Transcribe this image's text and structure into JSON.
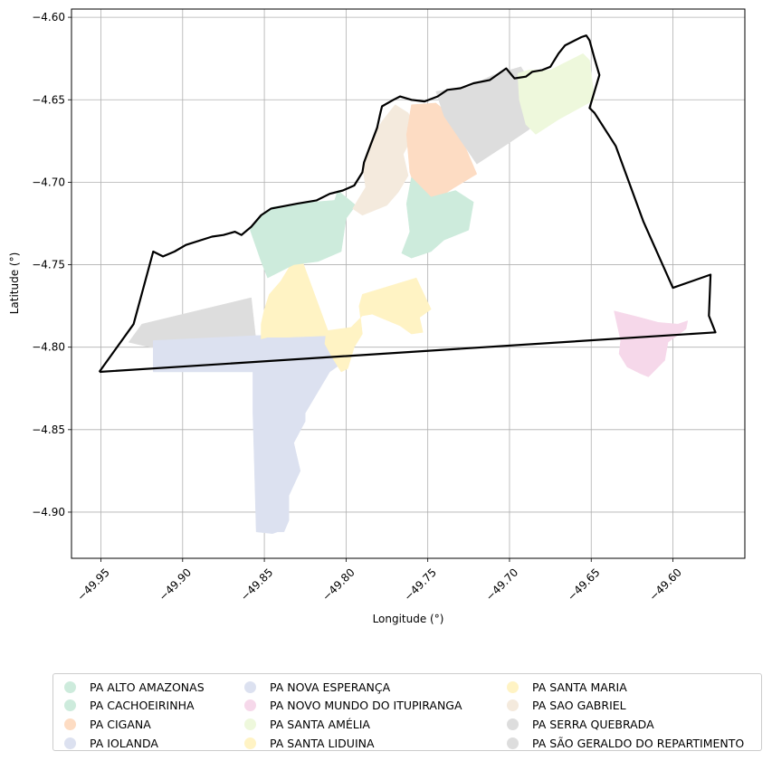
{
  "chart_data": {
    "type": "map",
    "xlabel": "Longitude (°)",
    "ylabel": "Latitude (°)",
    "xlim": [
      -49.968,
      -49.556
    ],
    "ylim": [
      -4.928,
      -4.595
    ],
    "xticks": [
      -49.95,
      -49.9,
      -49.85,
      -49.8,
      -49.75,
      -49.7,
      -49.65,
      -49.6
    ],
    "xtick_labels": [
      "−49.95",
      "−49.90",
      "−49.85",
      "−49.80",
      "−49.75",
      "−49.70",
      "−49.65",
      "−49.60"
    ],
    "yticks": [
      -4.6,
      -4.65,
      -4.7,
      -4.75,
      -4.8,
      -4.85,
      -4.9
    ],
    "ytick_labels": [
      "−4.60",
      "−4.65",
      "−4.70",
      "−4.75",
      "−4.80",
      "−4.85",
      "−4.90"
    ],
    "grid": true,
    "legend_position": "bottom",
    "boundary_color": "#000000",
    "legend": [
      {
        "label": "PA ALTO AMAZONAS",
        "color": "#cdebdc"
      },
      {
        "label": "PA CACHOEIRINHA",
        "color": "#cdebdc"
      },
      {
        "label": "PA CIGANA",
        "color": "#fddcc3"
      },
      {
        "label": "PA IOLANDA",
        "color": "#dce1f0"
      },
      {
        "label": "PA NOVA ESPERANÇA",
        "color": "#dce1f0"
      },
      {
        "label": "PA NOVO MUNDO DO ITUPIRANGA",
        "color": "#f6d8ea"
      },
      {
        "label": "PA SANTA AMÉLIA",
        "color": "#eef8dc"
      },
      {
        "label": "PA SANTA LIDUINA",
        "color": "#fff3c4"
      },
      {
        "label": "PA SANTA MARIA",
        "color": "#fff3c4"
      },
      {
        "label": "PA SAO GABRIEL",
        "color": "#f4eadd"
      },
      {
        "label": "PA SERRA QUEBRADA",
        "color": "#dddddd"
      },
      {
        "label": "PA SÃO GERALDO DO REPARTIMENTO",
        "color": "#dddddd"
      }
    ],
    "regions": [
      {
        "name": "PA SERRA QUEBRADA",
        "color": "#dddddd",
        "coords": [
          [
            -49.933,
            -4.797
          ],
          [
            -49.925,
            -4.786
          ],
          [
            -49.858,
            -4.77
          ],
          [
            -49.855,
            -4.797
          ],
          [
            -49.86,
            -4.8
          ],
          [
            -49.92,
            -4.8
          ]
        ]
      },
      {
        "name": "PA NOVA ESPERANÇA",
        "color": "#dce1f0",
        "coords": [
          [
            -49.918,
            -4.796
          ],
          [
            -49.855,
            -4.793
          ],
          [
            -49.81,
            -4.792
          ],
          [
            -49.804,
            -4.8
          ],
          [
            -49.8,
            -4.808
          ],
          [
            -49.81,
            -4.815
          ],
          [
            -49.825,
            -4.84
          ],
          [
            -49.825,
            -4.845
          ],
          [
            -49.832,
            -4.858
          ],
          [
            -49.828,
            -4.875
          ],
          [
            -49.835,
            -4.89
          ],
          [
            -49.835,
            -4.905
          ],
          [
            -49.838,
            -4.912
          ],
          [
            -49.842,
            -4.912
          ],
          [
            -49.845,
            -4.913
          ],
          [
            -49.855,
            -4.912
          ],
          [
            -49.856,
            -4.876
          ],
          [
            -49.857,
            -4.84
          ],
          [
            -49.857,
            -4.815
          ],
          [
            -49.918,
            -4.815
          ]
        ]
      },
      {
        "name": "PA SANTA LIDUINA",
        "color": "#fff3c4",
        "coords": [
          [
            -49.847,
            -4.768
          ],
          [
            -49.84,
            -4.76
          ],
          [
            -49.832,
            -4.747
          ],
          [
            -49.827,
            -4.747
          ],
          [
            -49.81,
            -4.793
          ],
          [
            -49.836,
            -4.794
          ],
          [
            -49.848,
            -4.794
          ],
          [
            -49.852,
            -4.795
          ],
          [
            -49.852,
            -4.786
          ],
          [
            -49.85,
            -4.777
          ]
        ]
      },
      {
        "name": "PA SANTA MARIA",
        "color": "#fff3c4",
        "coords": [
          [
            -49.813,
            -4.798
          ],
          [
            -49.808,
            -4.807
          ],
          [
            -49.803,
            -4.815
          ],
          [
            -49.799,
            -4.813
          ],
          [
            -49.795,
            -4.8
          ],
          [
            -49.79,
            -4.792
          ],
          [
            -49.792,
            -4.775
          ],
          [
            -49.79,
            -4.768
          ],
          [
            -49.757,
            -4.758
          ],
          [
            -49.748,
            -4.777
          ],
          [
            -49.755,
            -4.782
          ],
          [
            -49.753,
            -4.791
          ],
          [
            -49.76,
            -4.792
          ],
          [
            -49.767,
            -4.787
          ],
          [
            -49.784,
            -4.78
          ],
          [
            -49.79,
            -4.781
          ],
          [
            -49.797,
            -4.788
          ],
          [
            -49.812,
            -4.79
          ]
        ]
      },
      {
        "name": "PA ALTO AMAZONAS",
        "color": "#cdebdc",
        "coords": [
          [
            -49.859,
            -4.728
          ],
          [
            -49.852,
            -4.72
          ],
          [
            -49.845,
            -4.715
          ],
          [
            -49.82,
            -4.712
          ],
          [
            -49.807,
            -4.711
          ],
          [
            -49.805,
            -4.705
          ],
          [
            -49.794,
            -4.714
          ],
          [
            -49.8,
            -4.722
          ],
          [
            -49.803,
            -4.742
          ],
          [
            -49.817,
            -4.748
          ],
          [
            -49.832,
            -4.75
          ],
          [
            -49.848,
            -4.758
          ],
          [
            -49.852,
            -4.748
          ]
        ]
      },
      {
        "name": "PA SAO GABRIEL",
        "color": "#f4eadd",
        "coords": [
          [
            -49.785,
            -4.675
          ],
          [
            -49.778,
            -4.663
          ],
          [
            -49.77,
            -4.653
          ],
          [
            -49.762,
            -4.658
          ],
          [
            -49.757,
            -4.668
          ],
          [
            -49.765,
            -4.683
          ],
          [
            -49.762,
            -4.696
          ],
          [
            -49.768,
            -4.706
          ],
          [
            -49.775,
            -4.714
          ],
          [
            -49.79,
            -4.72
          ],
          [
            -49.796,
            -4.716
          ],
          [
            -49.788,
            -4.703
          ],
          [
            -49.79,
            -4.69
          ]
        ]
      },
      {
        "name": "PA CIGANA",
        "color": "#fddcc3",
        "coords": [
          [
            -49.76,
            -4.653
          ],
          [
            -49.745,
            -4.652
          ],
          [
            -49.735,
            -4.66
          ],
          [
            -49.72,
            -4.695
          ],
          [
            -49.735,
            -4.704
          ],
          [
            -49.747,
            -4.712
          ],
          [
            -49.753,
            -4.716
          ],
          [
            -49.761,
            -4.694
          ],
          [
            -49.763,
            -4.671
          ]
        ]
      },
      {
        "name": "PA CACHOEIRINHA",
        "color": "#cdebdc",
        "coords": [
          [
            -49.76,
            -4.697
          ],
          [
            -49.763,
            -4.713
          ],
          [
            -49.761,
            -4.73
          ],
          [
            -49.766,
            -4.743
          ],
          [
            -49.76,
            -4.746
          ],
          [
            -49.748,
            -4.742
          ],
          [
            -49.74,
            -4.735
          ],
          [
            -49.725,
            -4.729
          ],
          [
            -49.722,
            -4.712
          ],
          [
            -49.733,
            -4.705
          ],
          [
            -49.748,
            -4.709
          ]
        ]
      },
      {
        "name": "PA SÃO GERALDO DO REPARTIMENTO",
        "color": "#dddddd",
        "coords": [
          [
            -49.745,
            -4.645
          ],
          [
            -49.725,
            -4.642
          ],
          [
            -49.71,
            -4.635
          ],
          [
            -49.7,
            -4.632
          ],
          [
            -49.693,
            -4.63
          ],
          [
            -49.688,
            -4.638
          ],
          [
            -49.685,
            -4.645
          ],
          [
            -49.683,
            -4.66
          ],
          [
            -49.688,
            -4.668
          ],
          [
            -49.7,
            -4.676
          ],
          [
            -49.72,
            -4.689
          ],
          [
            -49.74,
            -4.66
          ]
        ]
      },
      {
        "name": "PA SANTA AMÉLIA",
        "color": "#eef8dc",
        "coords": [
          [
            -49.695,
            -4.634
          ],
          [
            -49.688,
            -4.632
          ],
          [
            -49.675,
            -4.632
          ],
          [
            -49.655,
            -4.622
          ],
          [
            -49.651,
            -4.626
          ],
          [
            -49.648,
            -4.65
          ],
          [
            -49.67,
            -4.662
          ],
          [
            -49.684,
            -4.671
          ],
          [
            -49.69,
            -4.665
          ],
          [
            -49.694,
            -4.65
          ]
        ]
      },
      {
        "name": "PA NOVO MUNDO DO ITUPIRANGA",
        "color": "#f6d8ea",
        "coords": [
          [
            -49.636,
            -4.778
          ],
          [
            -49.62,
            -4.782
          ],
          [
            -49.609,
            -4.785
          ],
          [
            -49.597,
            -4.786
          ],
          [
            -49.591,
            -4.784
          ],
          [
            -49.592,
            -4.789
          ],
          [
            -49.603,
            -4.797
          ],
          [
            -49.605,
            -4.808
          ],
          [
            -49.615,
            -4.818
          ],
          [
            -49.62,
            -4.816
          ],
          [
            -49.628,
            -4.812
          ],
          [
            -49.633,
            -4.804
          ],
          [
            -49.632,
            -4.796
          ]
        ]
      }
    ],
    "boundary": [
      [
        -49.951,
        -4.815
      ],
      [
        -49.93,
        -4.786
      ],
      [
        -49.918,
        -4.742
      ],
      [
        -49.912,
        -4.745
      ],
      [
        -49.905,
        -4.742
      ],
      [
        -49.898,
        -4.738
      ],
      [
        -49.882,
        -4.733
      ],
      [
        -49.875,
        -4.732
      ],
      [
        -49.868,
        -4.73
      ],
      [
        -49.864,
        -4.732
      ],
      [
        -49.858,
        -4.727
      ],
      [
        -49.852,
        -4.72
      ],
      [
        -49.846,
        -4.716
      ],
      [
        -49.83,
        -4.713
      ],
      [
        -49.818,
        -4.711
      ],
      [
        -49.81,
        -4.707
      ],
      [
        -49.802,
        -4.705
      ],
      [
        -49.795,
        -4.702
      ],
      [
        -49.79,
        -4.694
      ],
      [
        -49.789,
        -4.688
      ],
      [
        -49.786,
        -4.68
      ],
      [
        -49.781,
        -4.667
      ],
      [
        -49.779,
        -4.658
      ],
      [
        -49.778,
        -4.654
      ],
      [
        -49.771,
        -4.65
      ],
      [
        -49.767,
        -4.648
      ],
      [
        -49.76,
        -4.65
      ],
      [
        -49.752,
        -4.651
      ],
      [
        -49.744,
        -4.648
      ],
      [
        -49.738,
        -4.644
      ],
      [
        -49.73,
        -4.643
      ],
      [
        -49.722,
        -4.64
      ],
      [
        -49.712,
        -4.638
      ],
      [
        -49.702,
        -4.631
      ],
      [
        -49.697,
        -4.637
      ],
      [
        -49.69,
        -4.636
      ],
      [
        -49.686,
        -4.633
      ],
      [
        -49.68,
        -4.632
      ],
      [
        -49.675,
        -4.63
      ],
      [
        -49.67,
        -4.622
      ],
      [
        -49.666,
        -4.617
      ],
      [
        -49.66,
        -4.614
      ],
      [
        -49.656,
        -4.612
      ],
      [
        -49.653,
        -4.611
      ],
      [
        -49.651,
        -4.614
      ],
      [
        -49.648,
        -4.625
      ],
      [
        -49.645,
        -4.635
      ],
      [
        -49.651,
        -4.655
      ],
      [
        -49.648,
        -4.658
      ],
      [
        -49.635,
        -4.678
      ],
      [
        -49.618,
        -4.724
      ],
      [
        -49.6,
        -4.764
      ],
      [
        -49.577,
        -4.756
      ],
      [
        -49.578,
        -4.781
      ],
      [
        -49.574,
        -4.791
      ],
      [
        -49.951,
        -4.815
      ]
    ]
  }
}
